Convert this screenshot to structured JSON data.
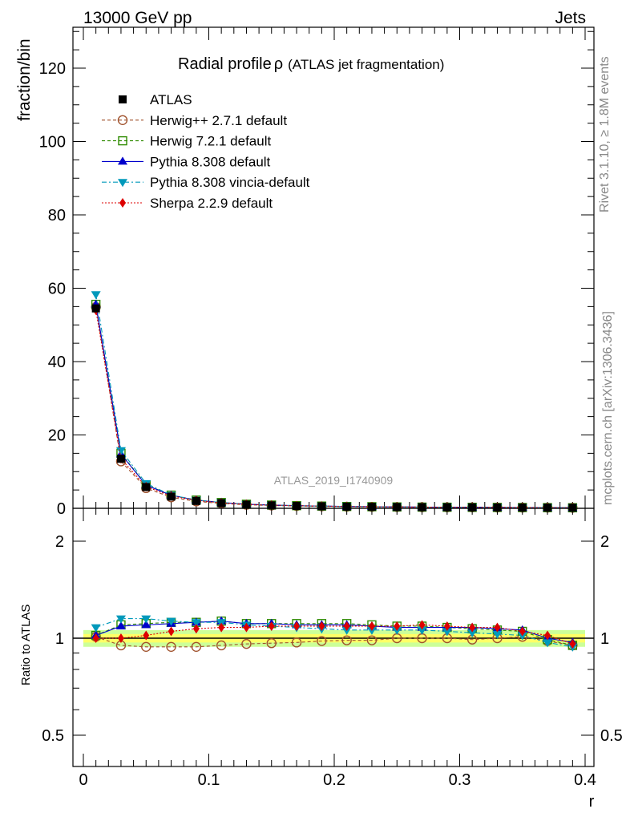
{
  "header": {
    "left": "13000 GeV pp",
    "right": "Jets"
  },
  "side_labels": {
    "rivet": "Rivet 3.1.10, ≥ 1.8M events",
    "mcplots": "mcplots.cern.ch [arXiv:1306.3436]"
  },
  "title": {
    "main": "Radial profile",
    "symbol": "ρ",
    "sub": "(ATLAS jet fragmentation)"
  },
  "watermark": "ATLAS_2019_I1740909",
  "colors": {
    "reference": "#000000",
    "band_inner": "#ffff66",
    "band_outer": "#ccff99"
  },
  "chart_data": [
    {
      "type": "line",
      "name": "main",
      "ylabel": "fraction/bin",
      "ylim": [
        0,
        130
      ],
      "yticks": [
        0,
        20,
        40,
        60,
        80,
        100,
        120
      ],
      "x": [
        0.01,
        0.03,
        0.05,
        0.07,
        0.09,
        0.11,
        0.13,
        0.15,
        0.17,
        0.19,
        0.21,
        0.23,
        0.25,
        0.27,
        0.29,
        0.31,
        0.33,
        0.35,
        0.37,
        0.39
      ],
      "xlim": [
        0,
        0.4
      ],
      "legend_position": "top-left",
      "series": [
        {
          "name": "ATLAS",
          "color": "#000000",
          "marker": "square-filled",
          "dash": "none",
          "values": [
            54.5,
            13.5,
            5.8,
            3.2,
            2.0,
            1.4,
            1.0,
            0.8,
            0.65,
            0.55,
            0.45,
            0.4,
            0.35,
            0.3,
            0.28,
            0.25,
            0.22,
            0.2,
            0.18,
            0.16
          ]
        },
        {
          "name": "Herwig++ 2.7.1 default",
          "color": "#a0522d",
          "marker": "circle-open",
          "dash": "4,3",
          "values": [
            54.9,
            12.8,
            5.5,
            3.0,
            1.9,
            1.33,
            0.96,
            0.77,
            0.63,
            0.54,
            0.44,
            0.39,
            0.35,
            0.3,
            0.28,
            0.25,
            0.22,
            0.2,
            0.18,
            0.15
          ]
        },
        {
          "name": "Herwig 7.2.1 default",
          "color": "#2e8b00",
          "marker": "square-open",
          "dash": "4,3",
          "values": [
            55.6,
            15.0,
            6.4,
            3.6,
            2.25,
            1.58,
            1.11,
            0.89,
            0.72,
            0.61,
            0.5,
            0.44,
            0.38,
            0.33,
            0.3,
            0.27,
            0.24,
            0.21,
            0.18,
            0.15
          ]
        },
        {
          "name": "Pythia 8.308 default",
          "color": "#0000cc",
          "marker": "triangle-up",
          "dash": "none",
          "values": [
            55.6,
            14.8,
            6.3,
            3.55,
            2.24,
            1.58,
            1.11,
            0.89,
            0.72,
            0.61,
            0.5,
            0.44,
            0.38,
            0.33,
            0.3,
            0.27,
            0.24,
            0.21,
            0.17,
            0.15
          ]
        },
        {
          "name": "Pythia 8.308 vincia-default",
          "color": "#0099bb",
          "marker": "triangle-down",
          "dash": "6,3,2,3",
          "values": [
            58.3,
            15.8,
            6.8,
            3.6,
            2.25,
            1.58,
            1.11,
            0.88,
            0.71,
            0.6,
            0.49,
            0.43,
            0.37,
            0.32,
            0.29,
            0.26,
            0.23,
            0.2,
            0.17,
            0.15
          ]
        },
        {
          "name": "Sherpa 2.2.9 default",
          "color": "#dd0000",
          "marker": "diamond",
          "dash": "2,2",
          "values": [
            54.0,
            13.5,
            5.9,
            3.35,
            2.15,
            1.5,
            1.08,
            0.87,
            0.71,
            0.6,
            0.49,
            0.43,
            0.38,
            0.33,
            0.3,
            0.27,
            0.24,
            0.21,
            0.18,
            0.15
          ]
        }
      ]
    },
    {
      "type": "line",
      "name": "ratio",
      "ylabel": "Ratio to ATLAS",
      "xlabel": "r",
      "log_y": true,
      "ylim": [
        0.4,
        2.5
      ],
      "yticks": [
        0.5,
        1,
        2
      ],
      "xlim": [
        0,
        0.4
      ],
      "xticks": [
        0,
        0.1,
        0.2,
        0.3,
        0.4
      ],
      "x": [
        0.01,
        0.03,
        0.05,
        0.07,
        0.09,
        0.11,
        0.13,
        0.15,
        0.17,
        0.19,
        0.21,
        0.23,
        0.25,
        0.27,
        0.29,
        0.31,
        0.33,
        0.35,
        0.37,
        0.39
      ],
      "band_inner": [
        0.97,
        1.03
      ],
      "band_outer": [
        0.94,
        1.06
      ],
      "series": [
        {
          "name": "Herwig++ 2.7.1 default",
          "color": "#a0522d",
          "marker": "circle-open",
          "dash": "4,3",
          "values": [
            1.01,
            0.95,
            0.94,
            0.94,
            0.94,
            0.95,
            0.96,
            0.965,
            0.97,
            0.98,
            0.985,
            0.985,
            1.0,
            1.0,
            1.0,
            0.99,
            1.0,
            1.01,
            0.98,
            0.95
          ]
        },
        {
          "name": "Herwig 7.2.1 default",
          "color": "#2e8b00",
          "marker": "square-open",
          "dash": "4,3",
          "values": [
            1.02,
            1.1,
            1.11,
            1.12,
            1.12,
            1.13,
            1.11,
            1.11,
            1.11,
            1.11,
            1.11,
            1.1,
            1.09,
            1.09,
            1.08,
            1.07,
            1.06,
            1.05,
            0.99,
            0.95
          ]
        },
        {
          "name": "Pythia 8.308 default",
          "color": "#0000cc",
          "marker": "triangle-up",
          "dash": "none",
          "values": [
            1.02,
            1.09,
            1.1,
            1.11,
            1.12,
            1.13,
            1.11,
            1.11,
            1.1,
            1.1,
            1.1,
            1.09,
            1.08,
            1.08,
            1.08,
            1.08,
            1.07,
            1.06,
            1.0,
            0.97
          ]
        },
        {
          "name": "Pythia 8.308 vincia-default",
          "color": "#0099bb",
          "marker": "triangle-down",
          "dash": "6,3,2,3",
          "values": [
            1.08,
            1.15,
            1.15,
            1.13,
            1.12,
            1.12,
            1.1,
            1.09,
            1.08,
            1.07,
            1.06,
            1.06,
            1.06,
            1.06,
            1.05,
            1.04,
            1.03,
            1.02,
            0.97,
            0.94
          ]
        },
        {
          "name": "Sherpa 2.2.9 default",
          "color": "#dd0000",
          "marker": "diamond",
          "dash": "2,2",
          "values": [
            1.0,
            1.0,
            1.02,
            1.05,
            1.07,
            1.08,
            1.08,
            1.09,
            1.09,
            1.09,
            1.09,
            1.09,
            1.09,
            1.1,
            1.09,
            1.08,
            1.08,
            1.05,
            1.02,
            0.96
          ]
        }
      ]
    }
  ]
}
